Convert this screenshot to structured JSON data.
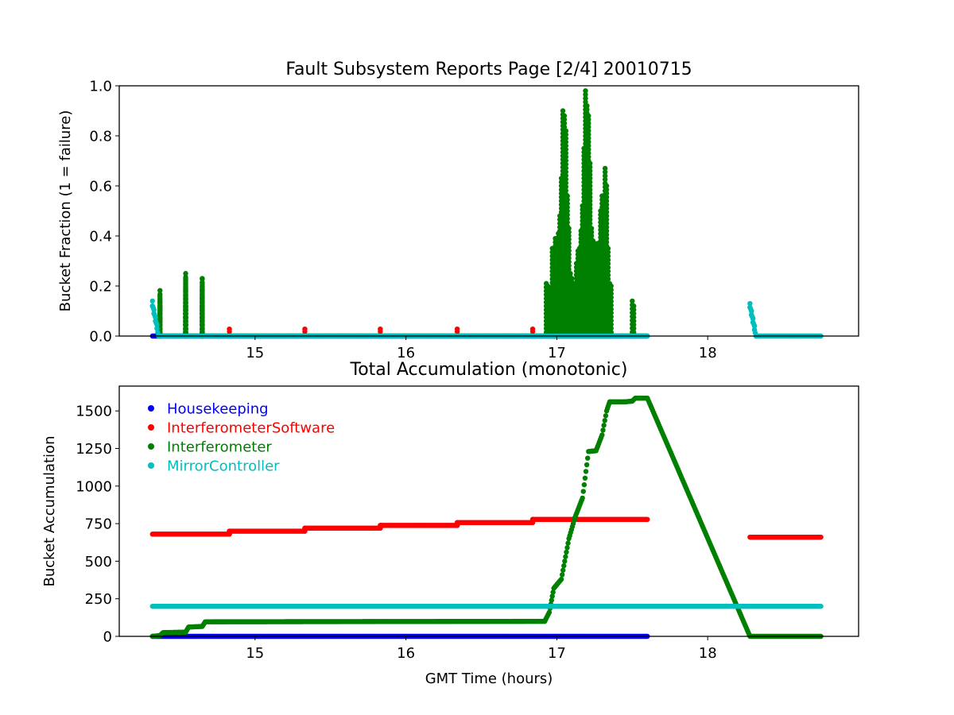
{
  "chart_data": [
    {
      "type": "scatter",
      "title": "Fault Subsystem Reports Page [2/4] 20010715",
      "xlabel": "",
      "ylabel": "Bucket Fraction (1 = failure)",
      "xlim": [
        14.1,
        19.0
      ],
      "ylim": [
        0.0,
        1.0
      ],
      "xticks": [
        "15",
        "16",
        "17",
        "18"
      ],
      "yticks": [
        "0.0",
        "0.2",
        "0.4",
        "0.6",
        "0.8",
        "1.0"
      ],
      "grid": false,
      "series": [
        {
          "name": "Housekeeping",
          "color": "#0000ff",
          "x": [
            14.32,
            17.6
          ],
          "y": [
            0.0,
            0.0
          ],
          "render": "line"
        },
        {
          "name": "InterferometerSoftware",
          "color": "#ff0000",
          "x": [
            14.83,
            15.33,
            15.83,
            16.34,
            16.84
          ],
          "y": [
            0.028,
            0.028,
            0.028,
            0.028,
            0.028
          ],
          "render": "points"
        },
        {
          "name": "Interferometer",
          "color": "#008000",
          "x": [
            14.37,
            14.37,
            14.37,
            14.37,
            14.37,
            14.37,
            14.37,
            14.37,
            14.37,
            14.54,
            14.54,
            14.54,
            14.54,
            14.54,
            14.54,
            14.54,
            14.54,
            14.54,
            14.54,
            14.54,
            14.54,
            14.65,
            14.65,
            14.65,
            14.65,
            14.65,
            14.65,
            14.65,
            14.65,
            14.65,
            14.65,
            14.65,
            14.65,
            16.93,
            16.94,
            16.95,
            16.97,
            16.98,
            16.99,
            17.0,
            17.01,
            17.02,
            17.03,
            17.04,
            17.05,
            17.06,
            17.07,
            17.08,
            17.09,
            17.1,
            17.11,
            17.12,
            17.13,
            17.14,
            17.15,
            17.16,
            17.17,
            17.18,
            17.19,
            17.2,
            17.21,
            17.22,
            17.23,
            17.24,
            17.25,
            17.27,
            17.28,
            17.29,
            17.3,
            17.31,
            17.32,
            17.33,
            17.34,
            17.35,
            17.36,
            17.5,
            17.51
          ],
          "y": [
            0.0,
            0.023,
            0.046,
            0.068,
            0.091,
            0.114,
            0.137,
            0.159,
            0.182,
            0.0,
            0.023,
            0.046,
            0.068,
            0.091,
            0.114,
            0.137,
            0.159,
            0.182,
            0.205,
            0.228,
            0.25,
            0.0,
            0.023,
            0.046,
            0.068,
            0.091,
            0.114,
            0.137,
            0.159,
            0.182,
            0.205,
            0.228,
            0.23,
            0.21,
            0.2,
            0.19,
            0.35,
            0.3,
            0.39,
            0.32,
            0.41,
            0.48,
            0.63,
            0.9,
            0.88,
            0.82,
            0.56,
            0.43,
            0.25,
            0.23,
            0.19,
            0.2,
            0.29,
            0.34,
            0.35,
            0.42,
            0.52,
            0.75,
            0.98,
            0.92,
            0.88,
            0.69,
            0.43,
            0.38,
            0.37,
            0.37,
            0.32,
            0.5,
            0.56,
            0.53,
            0.67,
            0.6,
            0.35,
            0.21,
            0.2,
            0.14,
            0.12
          ]
        },
        {
          "name": "MirrorController",
          "color": "#00bfbf",
          "x": [
            14.32,
            14.32,
            14.33,
            14.33,
            14.34,
            14.34,
            14.35,
            14.35,
            14.36,
            17.6,
            18.28,
            18.28,
            18.29,
            18.29,
            18.3,
            18.3,
            18.31,
            18.31,
            18.32,
            18.75
          ],
          "y": [
            0.14,
            0.12,
            0.105,
            0.09,
            0.075,
            0.06,
            0.045,
            0.03,
            0.0,
            0.0,
            0.13,
            0.115,
            0.1,
            0.085,
            0.07,
            0.055,
            0.04,
            0.025,
            0.0,
            0.0
          ],
          "render": "segments"
        }
      ]
    },
    {
      "type": "scatter",
      "title": "Total Accumulation (monotonic)",
      "xlabel": "GMT Time (hours)",
      "ylabel": "Bucket Accumulation",
      "xlim": [
        14.1,
        19.0
      ],
      "ylim": [
        0,
        1665
      ],
      "xticks": [
        "15",
        "16",
        "17",
        "18"
      ],
      "yticks": [
        "0",
        "250",
        "500",
        "750",
        "1000",
        "1250",
        "1500"
      ],
      "grid": false,
      "legend": "top-left",
      "series": [
        {
          "name": "Housekeeping",
          "color": "#0000ff",
          "x": [
            14.32,
            17.6
          ],
          "y": [
            0,
            0
          ],
          "render": "line"
        },
        {
          "name": "InterferometerSoftware",
          "color": "#ff0000",
          "x": [
            14.32,
            14.83,
            14.83,
            15.33,
            15.33,
            15.83,
            15.83,
            16.34,
            16.34,
            16.84,
            16.84,
            17.6,
            18.28,
            18.75
          ],
          "y": [
            680,
            680,
            700,
            700,
            720,
            720,
            738,
            738,
            757,
            757,
            778,
            778,
            660,
            660
          ],
          "render": "segments"
        },
        {
          "name": "Interferometer",
          "color": "#008000",
          "x": [
            14.32,
            14.37,
            14.39,
            14.54,
            14.56,
            14.65,
            14.67,
            16.92,
            16.95,
            16.98,
            17.03,
            17.08,
            17.12,
            17.17,
            17.21,
            17.26,
            17.3,
            17.33,
            17.35,
            17.37,
            17.45,
            17.5,
            17.52,
            17.6,
            18.28,
            18.75
          ],
          "y": [
            0,
            5,
            25,
            28,
            62,
            66,
            97,
            100,
            160,
            320,
            380,
            650,
            790,
            920,
            1230,
            1235,
            1340,
            1500,
            1560,
            1560,
            1560,
            1565,
            1585,
            1585,
            0,
            0
          ],
          "render": "line"
        },
        {
          "name": "MirrorController",
          "color": "#00bfbf",
          "x": [
            14.32,
            17.6,
            18.28,
            18.75
          ],
          "y": [
            200,
            200,
            200,
            200
          ],
          "render": "segments"
        }
      ]
    }
  ]
}
